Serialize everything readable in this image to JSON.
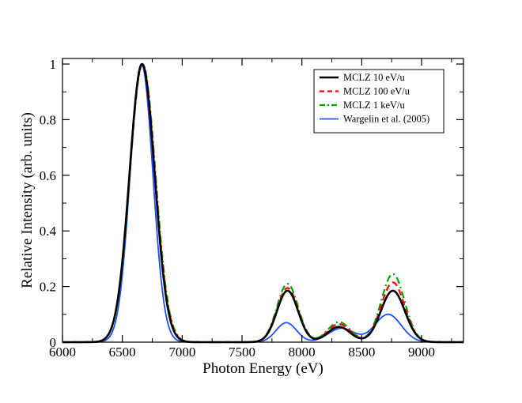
{
  "chart_data": {
    "type": "line",
    "xlabel": "Photon Energy (eV)",
    "ylabel": "Relative Intensity (arb. units)",
    "xlim": [
      6000,
      9350
    ],
    "ylim": [
      0,
      1.02
    ],
    "x_ticks": [
      6000,
      6500,
      7000,
      7500,
      8000,
      8500,
      9000
    ],
    "x_tick_labels": [
      "6000",
      "6500",
      "7000",
      "7500",
      "8000",
      "8500",
      "9000"
    ],
    "y_ticks": [
      0,
      0.2,
      0.4,
      0.6,
      0.8,
      1
    ],
    "y_tick_labels": [
      "0",
      "0.2",
      "0.4",
      "0.6",
      "0.8",
      "1"
    ],
    "legend_position": "top-right",
    "series": [
      {
        "name": "MCLZ 10 eV/u",
        "color": "#000000",
        "style": "solid",
        "width": 2.6,
        "peaks": [
          {
            "center": 6665,
            "height": 1.0,
            "sigma": 105
          },
          {
            "center": 7880,
            "height": 0.185,
            "sigma": 88
          },
          {
            "center": 8310,
            "height": 0.055,
            "sigma": 95
          },
          {
            "center": 8760,
            "height": 0.185,
            "sigma": 100
          }
        ]
      },
      {
        "name": "MCLZ 100 eV/u",
        "color": "#ff0000",
        "style": "dashed",
        "width": 2.2,
        "peaks": [
          {
            "center": 6668,
            "height": 1.0,
            "sigma": 106
          },
          {
            "center": 7880,
            "height": 0.195,
            "sigma": 88
          },
          {
            "center": 8310,
            "height": 0.065,
            "sigma": 95
          },
          {
            "center": 8760,
            "height": 0.215,
            "sigma": 98
          }
        ]
      },
      {
        "name": "MCLZ 1 keV/u",
        "color": "#00aa00",
        "style": "dashdot",
        "width": 2.2,
        "peaks": [
          {
            "center": 6670,
            "height": 1.0,
            "sigma": 107
          },
          {
            "center": 7880,
            "height": 0.21,
            "sigma": 88
          },
          {
            "center": 8310,
            "height": 0.072,
            "sigma": 95
          },
          {
            "center": 8760,
            "height": 0.245,
            "sigma": 97
          }
        ]
      },
      {
        "name": "Wargelin et al. (2005)",
        "color": "#1e4fff",
        "style": "solid",
        "width": 1.8,
        "peaks": [
          {
            "center": 6660,
            "height": 1.0,
            "sigma": 95
          },
          {
            "center": 7870,
            "height": 0.07,
            "sigma": 85
          },
          {
            "center": 8330,
            "height": 0.05,
            "sigma": 110
          },
          {
            "center": 8720,
            "height": 0.1,
            "sigma": 110
          }
        ]
      }
    ]
  }
}
